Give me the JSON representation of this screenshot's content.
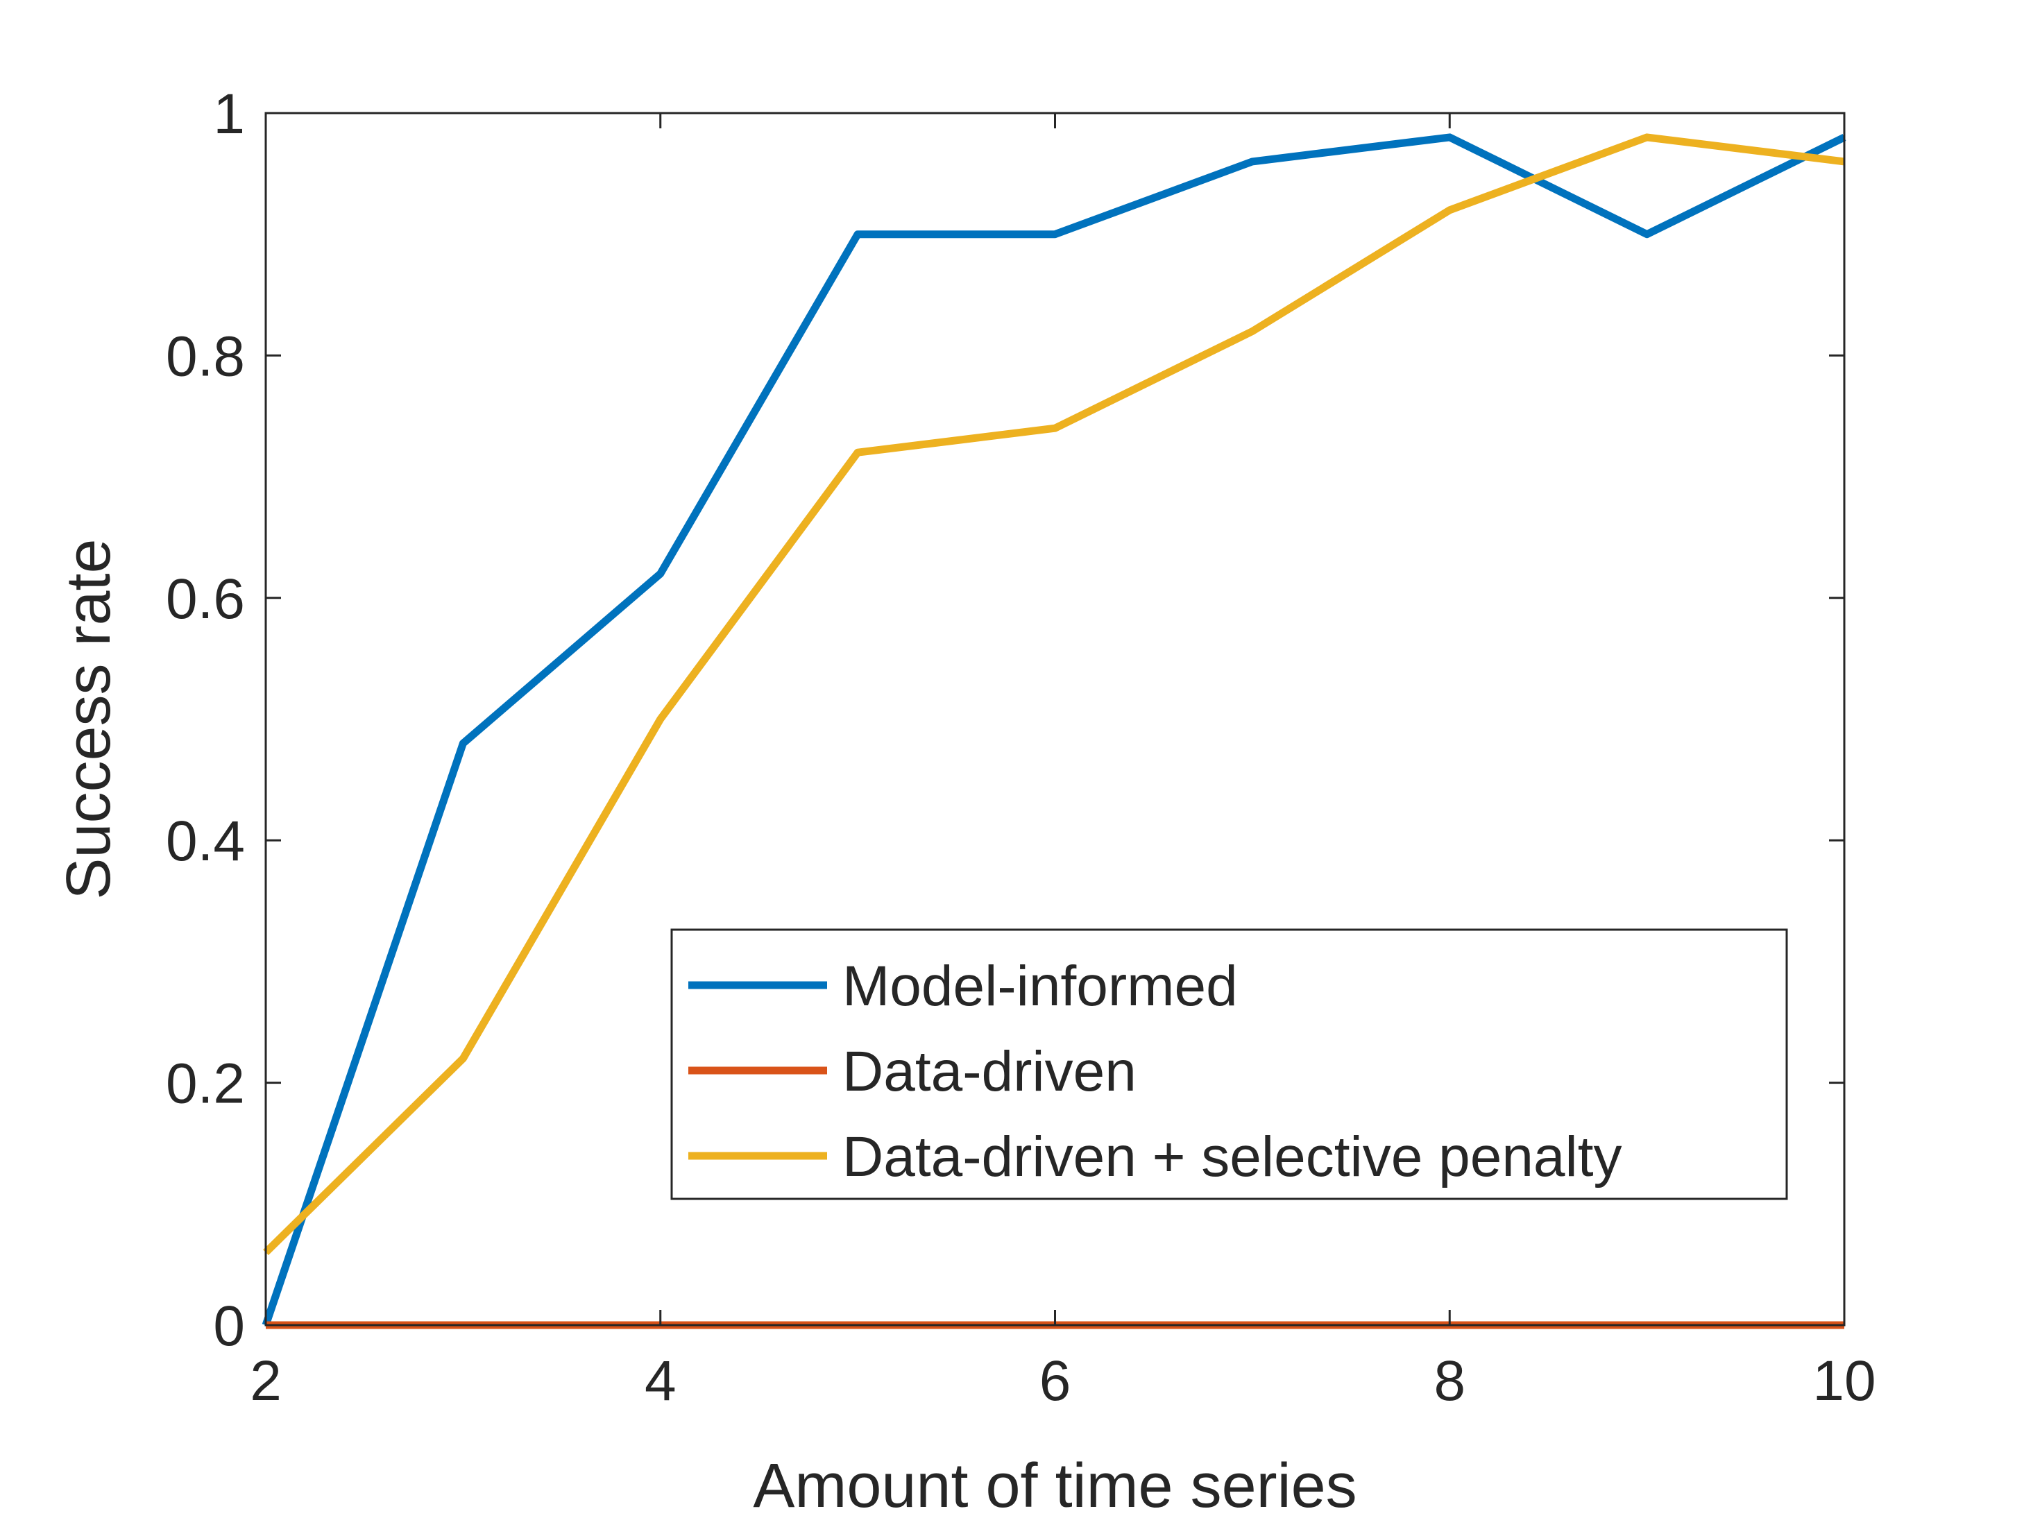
{
  "chart_data": {
    "type": "line",
    "xlabel": "Amount of time series",
    "ylabel": "Success rate",
    "xlim": [
      2,
      10
    ],
    "ylim": [
      0,
      1
    ],
    "x_ticks": [
      "2",
      "4",
      "6",
      "8",
      "10"
    ],
    "y_ticks": [
      "0",
      "0.2",
      "0.4",
      "0.6",
      "0.8",
      "1"
    ],
    "x": [
      2,
      3,
      4,
      5,
      6,
      7,
      8,
      9,
      10
    ],
    "series": [
      {
        "name": "Model-informed",
        "color": "#0072BD",
        "values": [
          0,
          0.48,
          0.62,
          0.9,
          0.9,
          0.96,
          0.98,
          0.9,
          0.98
        ]
      },
      {
        "name": "Data-driven",
        "color": "#D95319",
        "values": [
          0,
          0,
          0,
          0,
          0,
          0,
          0,
          0,
          0
        ]
      },
      {
        "name": "Data-driven + selective penalty",
        "color": "#EDB120",
        "values": [
          0.06,
          0.22,
          0.5,
          0.72,
          0.74,
          0.82,
          0.92,
          0.98,
          0.96
        ]
      }
    ],
    "grid": false,
    "legend_position": "bottom-right"
  }
}
